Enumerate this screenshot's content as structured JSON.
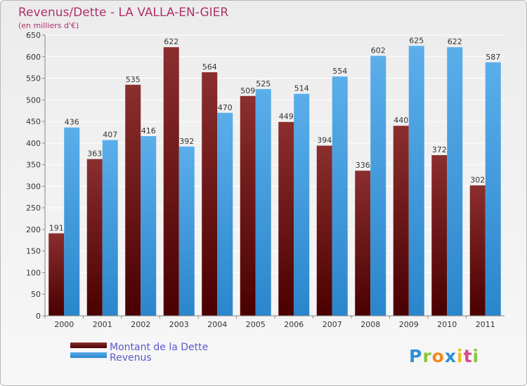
{
  "chart_data": {
    "type": "bar",
    "title": "Revenus/Dette - LA VALLA-EN-GIER",
    "subtitle": "(en milliers d'€)",
    "categories": [
      "2000",
      "2001",
      "2002",
      "2003",
      "2004",
      "2005",
      "2006",
      "2007",
      "2008",
      "2009",
      "2010",
      "2011"
    ],
    "series": [
      {
        "name": "Montant de la Dette",
        "color": "#7a1a1a",
        "values": [
          191,
          363,
          535,
          622,
          564,
          509,
          449,
          394,
          336,
          440,
          372,
          302
        ]
      },
      {
        "name": "Revenus",
        "color": "#4aa3e6",
        "values": [
          436,
          407,
          416,
          392,
          470,
          525,
          514,
          554,
          602,
          625,
          622,
          587
        ]
      }
    ],
    "ylim": [
      0,
      650
    ],
    "yticks": [
      0,
      50,
      100,
      150,
      200,
      250,
      300,
      350,
      400,
      450,
      500,
      550,
      600,
      650
    ],
    "grid": true,
    "legend_position": "bottom-left"
  },
  "brand": {
    "text": "Proxiti"
  }
}
